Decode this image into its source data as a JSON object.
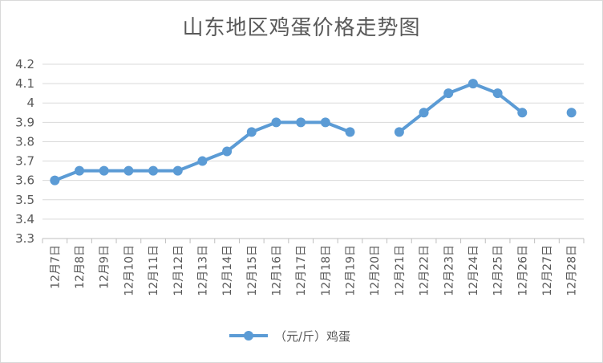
{
  "chart_data": {
    "type": "line",
    "title": "山东地区鸡蛋价格走势图",
    "categories": [
      "12月7日",
      "12月8日",
      "12月9日",
      "12月10日",
      "12月11日",
      "12月12日",
      "12月13日",
      "12月14日",
      "12月15日",
      "12月16日",
      "12月17日",
      "12月18日",
      "12月19日",
      "12月20日",
      "12月21日",
      "12月22日",
      "12月23日",
      "12月24日",
      "12月25日",
      "12月26日",
      "12月27日",
      "12月28日"
    ],
    "series": [
      {
        "name": "（元/斤）鸡蛋",
        "values": [
          3.6,
          3.65,
          3.65,
          3.65,
          3.65,
          3.65,
          3.7,
          3.75,
          3.85,
          3.9,
          3.9,
          3.9,
          3.85,
          null,
          3.85,
          3.95,
          4.05,
          4.1,
          4.05,
          3.95,
          null,
          3.95
        ],
        "color": "#5b9bd5"
      }
    ],
    "yticks": [
      "3.3",
      "3.4",
      "3.5",
      "3.6",
      "3.7",
      "3.8",
      "3.9",
      "4",
      "4.1",
      "4.2"
    ],
    "ylim": [
      3.3,
      4.2
    ],
    "grid": true,
    "legend": "bottom"
  }
}
